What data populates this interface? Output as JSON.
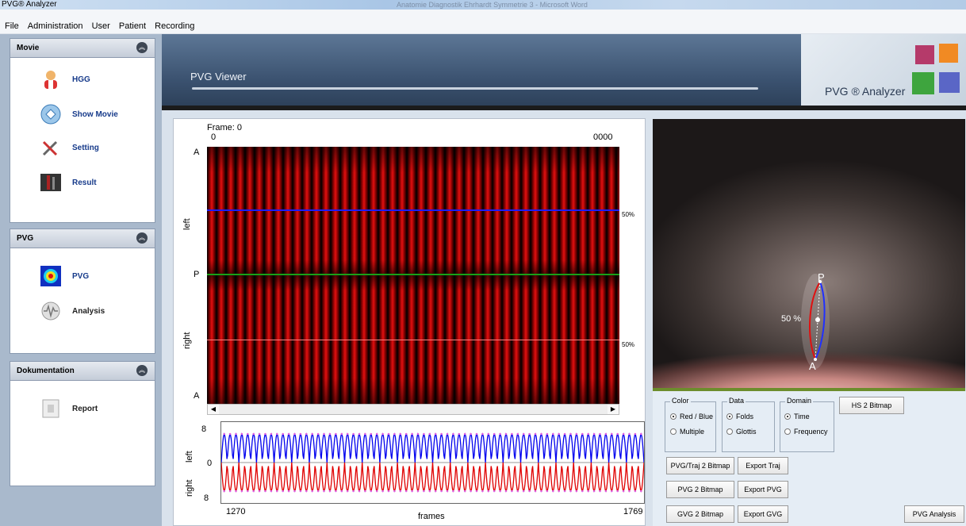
{
  "window": {
    "title": "PVG® Analyzer",
    "caption_center": "Anatomie Diagnostik Ehrhardt Symmetrie 3 - Microsoft Word"
  },
  "menu": {
    "items": [
      "File",
      "Administration",
      "User",
      "Patient",
      "Recording"
    ]
  },
  "sidebar": {
    "panels": [
      {
        "title": "Movie",
        "items": [
          {
            "label": "HGG",
            "icon": "user-icon"
          },
          {
            "label": "Show Movie",
            "icon": "movie-icon"
          },
          {
            "label": "Setting",
            "icon": "tools-icon"
          },
          {
            "label": "Result",
            "icon": "result-icon"
          }
        ]
      },
      {
        "title": "PVG",
        "items": [
          {
            "label": "PVG",
            "icon": "heatmap-icon"
          },
          {
            "label": "Analysis",
            "icon": "waveform-icon"
          }
        ]
      },
      {
        "title": "Dokumentation",
        "items": [
          {
            "label": "Report",
            "icon": "report-icon"
          }
        ]
      }
    ]
  },
  "banner": {
    "title": "PVG Viewer",
    "brand": "PVG ® Analyzer"
  },
  "kymogram": {
    "frame_label": "Frame: 0",
    "start": "0",
    "end": "0000",
    "label_A_top": "A",
    "label_P": "P",
    "label_A_bottom": "A",
    "label_left": "left",
    "label_right": "right",
    "pct_top": "50%",
    "pct_bottom": "50%",
    "colors": {
      "left_line": "#1d1dff",
      "mid_line": "#18a018",
      "right_line": "#ff8080"
    }
  },
  "trace": {
    "y_top": "8",
    "y_mid": "0",
    "y_bottom": "8",
    "label_left": "left",
    "label_right": "right",
    "x_start": "1270",
    "x_end": "1769",
    "x_label": "frames",
    "cycles": 36,
    "colors": {
      "left": "#0000ee",
      "right": "#e00000",
      "marker": "#e060e0"
    }
  },
  "video": {
    "label_P": "P",
    "label_A": "A",
    "percent": "50 %"
  },
  "controls": {
    "color": {
      "legend": "Color",
      "options": [
        "Red / Blue",
        "Multiple"
      ],
      "selected": "Red / Blue"
    },
    "data": {
      "legend": "Data",
      "options": [
        "Folds",
        "Glottis"
      ],
      "selected": "Folds"
    },
    "domain": {
      "legend": "Domain",
      "options": [
        "Time",
        "Frequency"
      ],
      "selected": "Time"
    },
    "buttons": {
      "hs2bitmap": "HS 2 Bitmap",
      "pvgtraj2bitmap": "PVG/Traj 2 Bitmap",
      "exporttraj": "Export Traj",
      "pvg2bitmap": "PVG 2 Bitmap",
      "exportpvg": "Export PVG",
      "gvg2bitmap": "GVG 2 Bitmap",
      "exportgvg": "Export GVG",
      "pvganalysis": "PVG Analysis"
    }
  }
}
